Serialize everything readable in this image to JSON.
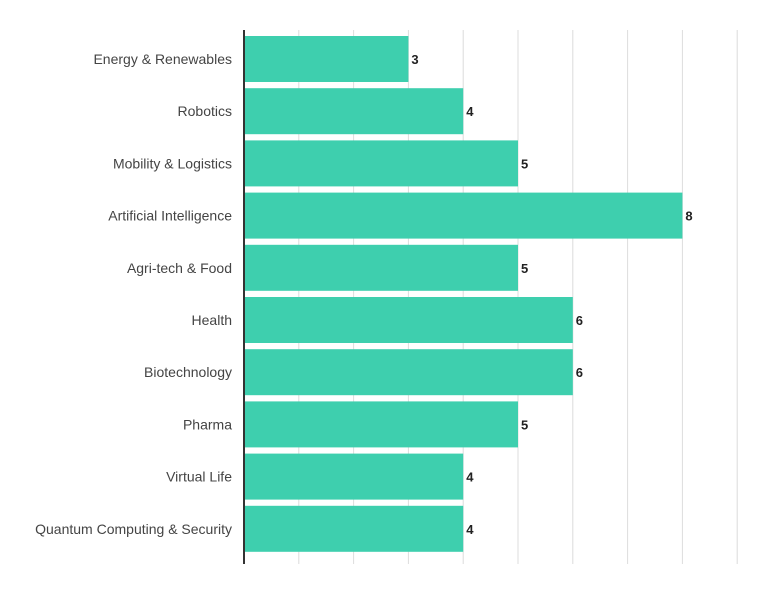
{
  "chart_data": {
    "type": "bar",
    "orientation": "horizontal",
    "title": "",
    "xlabel": "",
    "ylabel": "",
    "categories": [
      "Energy & Renewables",
      "Robotics",
      "Mobility & Logistics",
      "Artificial Intelligence",
      "Agri-tech & Food",
      "Health",
      "Biotechnology",
      "Pharma",
      "Virtual Life",
      "Quantum Computing & Security"
    ],
    "values": [
      3,
      4,
      5,
      8,
      5,
      6,
      6,
      5,
      4,
      4
    ],
    "xlim": [
      0,
      9
    ],
    "grid": true,
    "bar_color": "#3ecfae",
    "data_labels": true
  }
}
